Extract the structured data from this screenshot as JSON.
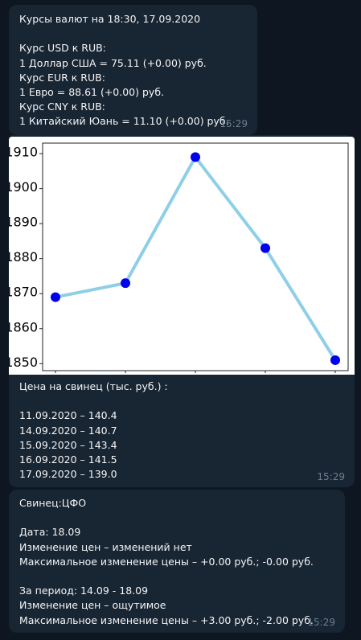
{
  "messages": [
    {
      "text": "Курсы валют на 18:30, 17.09.2020\n\nКурс USD к RUB:\n1 Доллар США = 75.11 (+0.00) руб.\nКурс EUR к RUB:\n1 Евро = 88.61 (+0.00) руб.\nКурс CNY к RUB:\n1 Китайский Юань = 11.10 (+0.00) руб.",
      "time": "15:29"
    },
    {
      "caption": "Цена на свинец (тыс. руб.) :\n\n11.09.2020 – 140.4\n14.09.2020 – 140.7\n15.09.2020 – 143.4\n16.09.2020 – 141.5\n17.09.2020 – 139.0",
      "time": "15:29"
    },
    {
      "text": "Свинец:ЦФО\n\nДата: 18.09\nИзменение цен – изменений нет\nМаксимальное изменение цены – +0.00 руб.; -0.00 руб.\n\nЗа период: 14.09 - 18.09\nИзменение цен – ощутимое\nМаксимальное изменение цены – +3.00 руб.; -2.00 руб.",
      "time": "15:29"
    }
  ],
  "chart_data": {
    "type": "line",
    "x": [
      1,
      2,
      3,
      4,
      5
    ],
    "values": [
      1869,
      1873,
      1909,
      1883,
      1851
    ],
    "yticks": [
      1850,
      1860,
      1870,
      1880,
      1890,
      1900,
      1910
    ],
    "ylim": [
      1848,
      1913
    ],
    "grid": false,
    "line_color": "#8ecfe8",
    "marker_color": "#0000ee",
    "title": "",
    "xlabel": "",
    "ylabel": ""
  }
}
